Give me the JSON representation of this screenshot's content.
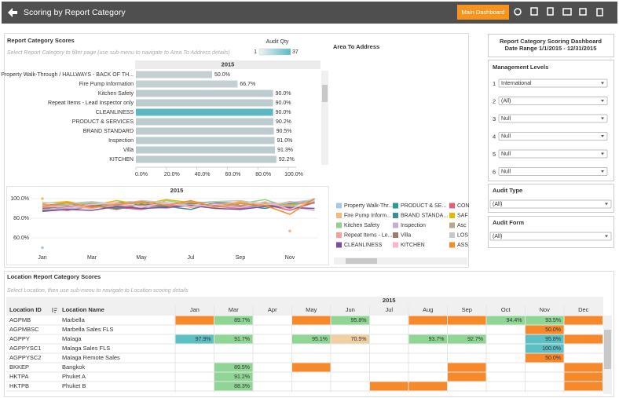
{
  "header": {
    "title": "Scoring by Report Category",
    "button": "Main Dashboard"
  },
  "category_panel": {
    "title": "Report Category Scores",
    "subtitle": "Select Report Category to filter page (use sub-menu to navigate to Area To Address details)",
    "legend_title": "Audit Qty",
    "legend_min": 1,
    "legend_max": 37,
    "legend_colors": [
      "#eef3f4",
      "#5bb8c4"
    ]
  },
  "bar_chart": {
    "type": "bar",
    "orientation": "horizontal",
    "header": "2015",
    "categories": [
      "Property Walk-Through / HALLWAYS - BACK OF TH...",
      "Fire Pump Information",
      "Kitchen Safety",
      "Repeat Items - Lead Inspector only",
      "CLEANLINESS",
      "PRODUCT & SERVICES",
      "BRAND STANDARD",
      "Inspection",
      "Villa",
      "KITCHEN"
    ],
    "values": [
      50.0,
      66.7,
      90.0,
      90.0,
      90.0,
      90.2,
      90.5,
      91.0,
      91.3,
      92.2
    ],
    "value_labels": [
      "50.0%",
      "66.7%",
      "90.0%",
      "90.0%",
      "90.0%",
      "90.2%",
      "90.5%",
      "91.0%",
      "91.3%",
      "92.2%"
    ],
    "colors": [
      "#c4d0d2",
      "#c4d0d2",
      "#bccbcd",
      "#bccbcd",
      "#5bb8c4",
      "#bccbcd",
      "#bccbcd",
      "#bccbcd",
      "#bccbcd",
      "#bccbcd"
    ],
    "xlim": [
      0,
      100
    ],
    "xticks": [
      {
        "value": 0,
        "label": "0.0%"
      },
      {
        "value": 20,
        "label": "20.0%"
      },
      {
        "value": 40,
        "label": "40.0%"
      },
      {
        "value": 60,
        "label": "60.0%"
      },
      {
        "value": 80,
        "label": "80.0%"
      },
      {
        "value": 100,
        "label": "100.0%"
      }
    ]
  },
  "line_chart": {
    "type": "line",
    "header": "2015",
    "categories": [
      "Jan",
      null,
      "Mar",
      null,
      "May",
      null,
      "Jul",
      null,
      "Sep",
      null,
      "Nov",
      null
    ],
    "ylim": [
      45,
      105
    ],
    "yticks": [
      {
        "value": 60,
        "label": "60.0%"
      },
      {
        "value": 80,
        "label": "80.0%"
      },
      {
        "value": 100,
        "label": "100.0%"
      }
    ],
    "series": [
      {
        "name": "Property Walk-Thr...",
        "color": "#a6c8e8",
        "values": [
          50,
          null,
          null,
          null,
          null,
          null,
          null,
          null,
          null,
          null,
          null,
          null
        ]
      },
      {
        "name": "PRODUCT & SE...",
        "color": "#2a9d8f",
        "values": [
          93,
          95,
          92,
          96,
          97,
          94,
          95,
          97,
          93,
          96,
          94,
          98
        ]
      },
      {
        "name": "CON",
        "color": "#e0607e",
        "values": [
          90,
          88,
          92,
          91,
          89,
          93,
          95,
          92,
          90,
          94,
          88,
          96
        ]
      },
      {
        "name": "Fire Pump Inform...",
        "color": "#f5b97a",
        "values": [
          100,
          null,
          null,
          null,
          null,
          null,
          null,
          null,
          null,
          null,
          67,
          null
        ]
      },
      {
        "name": "BRAND STANDA...",
        "color": "#3b8f96",
        "values": [
          88,
          91,
          94,
          90,
          95,
          92,
          89,
          96,
          93,
          90,
          95,
          99
        ]
      },
      {
        "name": "SAF",
        "color": "#e6b800",
        "values": [
          95,
          97,
          93,
          98,
          94,
          99,
          96,
          92,
          97,
          95,
          93,
          97
        ]
      },
      {
        "name": "Kitchen Safety",
        "color": "#8fd18f",
        "values": [
          92,
          94,
          96,
          93,
          90,
          98,
          94,
          97,
          95,
          99,
          91,
          100
        ]
      },
      {
        "name": "Inspection",
        "color": "#c5b0d5",
        "values": [
          89,
          90,
          91,
          92,
          93,
          90,
          94,
          92,
          91,
          93,
          92,
          88
        ]
      },
      {
        "name": "Asc",
        "color": "#b8a590",
        "values": [
          94,
          92,
          95,
          93,
          96,
          94,
          97,
          95,
          93,
          96,
          94,
          97
        ]
      },
      {
        "name": "Repeat Items - Le...",
        "color": "#f4a09c",
        "values": [
          91,
          93,
          90,
          95,
          92,
          96,
          91,
          94,
          96,
          92,
          97,
          95
        ]
      },
      {
        "name": "Villa",
        "color": "#9c7b6b",
        "values": [
          90,
          92,
          93,
          89,
          94,
          91,
          95,
          93,
          92,
          94,
          90,
          96
        ]
      },
      {
        "name": "LOS",
        "color": "#c7c7c7",
        "values": [
          96,
          95,
          97,
          94,
          98,
          96,
          93,
          97,
          98,
          94,
          96,
          99
        ]
      },
      {
        "name": "CLEANLINESS",
        "color": "#7b4f9d",
        "values": [
          87,
          89,
          88,
          92,
          90,
          91,
          93,
          90,
          89,
          92,
          91,
          90
        ]
      },
      {
        "name": "KITCHEN",
        "color": "#f5b8d0",
        "values": [
          93,
          91,
          94,
          96,
          92,
          95,
          92,
          94,
          91,
          97,
          89,
          98
        ]
      },
      {
        "name": "ASS",
        "color": "#f28e2b",
        "values": [
          92,
          96,
          91,
          94,
          97,
          93,
          98,
          91,
          95,
          93,
          84,
          100
        ]
      }
    ]
  },
  "area_title": "Area To Address",
  "filters": {
    "title": "Report Category Scoring Dashboard",
    "date_range": "Date Range 1/1/2015 - 12/31/2015",
    "management_title": "Management Levels",
    "levels": [
      {
        "number": 1,
        "value": "International"
      },
      {
        "number": 2,
        "value": "(All)"
      },
      {
        "number": 3,
        "value": "Null"
      },
      {
        "number": 4,
        "value": "Null"
      },
      {
        "number": 5,
        "value": "Null"
      },
      {
        "number": 6,
        "value": "Null"
      }
    ],
    "audit_type_title": "Audit Type",
    "audit_type": "(All)",
    "audit_form_title": "Audit Form",
    "audit_form": "(All)"
  },
  "location_table": {
    "title": "Location Report Category Scores",
    "subtitle": "Select Location, then use sub-menu to navigate to Location scoring details",
    "year": "2015",
    "id_header": "Location ID",
    "name_header": "Location Name",
    "months": [
      "Jan",
      "Mar",
      "Apr",
      "May",
      "Jun",
      "Jul",
      "Aug",
      "Sep",
      "Oct",
      "Nov",
      "Dec"
    ],
    "rows": [
      {
        "id": "AGPMB",
        "name": "Marbella",
        "cells": [
          {
            "color": "#f7892b"
          },
          {
            "label": "89.7%",
            "color": "#8fd694"
          },
          null,
          {
            "color": "#f7892b"
          },
          {
            "label": "95.8%",
            "color": "#8fd694"
          },
          null,
          {
            "color": "#f7892b"
          },
          {
            "color": "#f7892b"
          },
          {
            "label": "94.4%",
            "color": "#8fd694"
          },
          {
            "label": "93.5%",
            "color": "#8fd694"
          },
          {
            "color": "#f7892b"
          }
        ]
      },
      {
        "id": "AGPMBSC",
        "name": "Marbella Sales FLS",
        "cells": [
          null,
          null,
          null,
          null,
          null,
          null,
          null,
          null,
          null,
          {
            "label": "50.0%",
            "color": "#f7892b"
          },
          null
        ]
      },
      {
        "id": "AGPPY",
        "name": "Malaga",
        "cells": [
          {
            "label": "97.9%",
            "color": "#5bbfc4"
          },
          {
            "label": "91.7%",
            "color": "#8fd694"
          },
          null,
          {
            "label": "95.1%",
            "color": "#8fd694"
          },
          {
            "label": "70.5%",
            "color": "#f0cfa0"
          },
          null,
          {
            "label": "93.7%",
            "color": "#8fd694"
          },
          {
            "label": "92.7%",
            "color": "#8fd694"
          },
          null,
          {
            "label": "95.8%",
            "color": "#5bbfc4"
          },
          {
            "color": "#f7892b"
          }
        ]
      },
      {
        "id": "AGPPYSC1",
        "name": "Malaga Sales FLS",
        "cells": [
          null,
          null,
          null,
          null,
          null,
          null,
          null,
          null,
          null,
          {
            "label": "100.0%",
            "color": "#5bbfc4"
          },
          null
        ]
      },
      {
        "id": "AGPPYSC2",
        "name": "Malaga Remote Sales",
        "cells": [
          null,
          null,
          null,
          null,
          null,
          null,
          null,
          null,
          null,
          {
            "label": "50.0%",
            "color": "#f7892b"
          },
          null
        ]
      },
      {
        "id": "BKKEP",
        "name": "Bangkok",
        "cells": [
          null,
          {
            "label": "89.5%",
            "color": "#8fd694"
          },
          null,
          {
            "color": "#f7892b"
          },
          null,
          null,
          null,
          {
            "color": "#f7892b"
          },
          null,
          null,
          {
            "color": "#f7892b"
          }
        ]
      },
      {
        "id": "HKTPA",
        "name": "Phuket A",
        "cells": [
          null,
          {
            "label": "91.2%",
            "color": "#8fd694"
          },
          null,
          null,
          null,
          null,
          null,
          {
            "color": "#f7892b"
          },
          null,
          null,
          {
            "color": "#f7892b"
          }
        ]
      },
      {
        "id": "HKTPB",
        "name": "Phuket B",
        "cells": [
          null,
          {
            "label": "88.3%",
            "color": "#8fd694"
          },
          null,
          null,
          null,
          {
            "color": "#f7892b"
          },
          {
            "color": "#f7892b"
          },
          null,
          null,
          null,
          {
            "color": "#f7892b"
          }
        ]
      }
    ]
  }
}
